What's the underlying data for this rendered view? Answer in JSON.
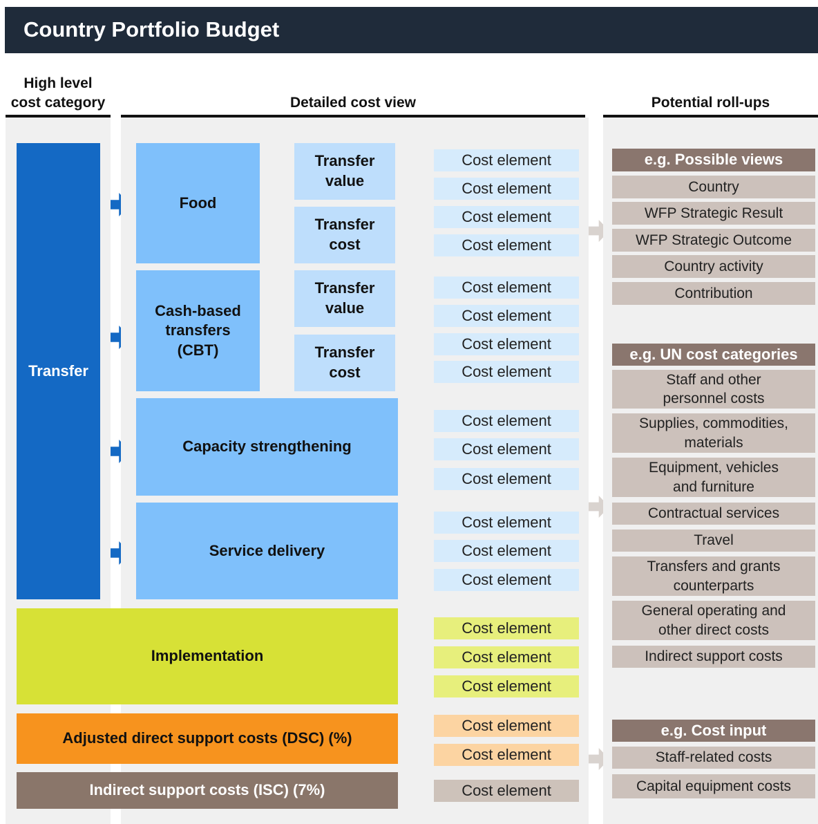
{
  "header": {
    "title": "Country Portfolio Budget"
  },
  "columns": {
    "high_level": [
      "High level",
      "cost category"
    ],
    "detailed": "Detailed cost view",
    "rollups": "Potential roll-ups"
  },
  "transfer": {
    "label": "Transfer",
    "groups": [
      {
        "label": [
          "Food"
        ],
        "subs": [
          {
            "label": [
              "Transfer",
              "value"
            ],
            "cost_elements": [
              "Cost element",
              "Cost element"
            ]
          },
          {
            "label": [
              "Transfer",
              "cost"
            ],
            "cost_elements": [
              "Cost element",
              "Cost element"
            ]
          }
        ]
      },
      {
        "label": [
          "Cash-based",
          "transfers",
          "(CBT)"
        ],
        "subs": [
          {
            "label": [
              "Transfer",
              "value"
            ],
            "cost_elements": [
              "Cost element",
              "Cost element"
            ]
          },
          {
            "label": [
              "Transfer",
              "cost"
            ],
            "cost_elements": [
              "Cost element",
              "Cost element"
            ]
          }
        ]
      },
      {
        "label": [
          "Capacity strengthening"
        ],
        "cost_elements": [
          "Cost element",
          "Cost element",
          "Cost element"
        ]
      },
      {
        "label": [
          "Service delivery"
        ],
        "cost_elements": [
          "Cost element",
          "Cost element",
          "Cost element"
        ]
      }
    ]
  },
  "implementation": {
    "label": [
      "Implementation"
    ],
    "cost_elements": [
      "Cost element",
      "Cost element",
      "Cost element"
    ]
  },
  "dsc": {
    "label": [
      "Adjusted direct support costs (DSC) (%)"
    ],
    "cost_elements": [
      "Cost element",
      "Cost element"
    ]
  },
  "isc": {
    "label": [
      "Indirect support costs (ISC) (7%)"
    ],
    "cost_elements": [
      "Cost element"
    ]
  },
  "rollups": [
    {
      "header": "e.g. Possible views",
      "items": [
        [
          "Country"
        ],
        [
          "WFP Strategic Result"
        ],
        [
          "WFP Strategic Outcome"
        ],
        [
          "Country activity"
        ],
        [
          "Contribution"
        ]
      ]
    },
    {
      "header": "e.g. UN cost categories",
      "items": [
        [
          "Staff and other",
          "personnel costs"
        ],
        [
          "Supplies, commodities,",
          "materials"
        ],
        [
          "Equipment, vehicles",
          "and furniture"
        ],
        [
          "Contractual services"
        ],
        [
          "Travel"
        ],
        [
          "Transfers and grants",
          "counterparts"
        ],
        [
          "General operating and",
          "other direct costs"
        ],
        [
          "Indirect support costs"
        ]
      ]
    },
    {
      "header": "e.g. Cost input",
      "items": [
        [
          "Staff-related costs"
        ],
        [
          "Capital equipment costs"
        ]
      ]
    }
  ]
}
